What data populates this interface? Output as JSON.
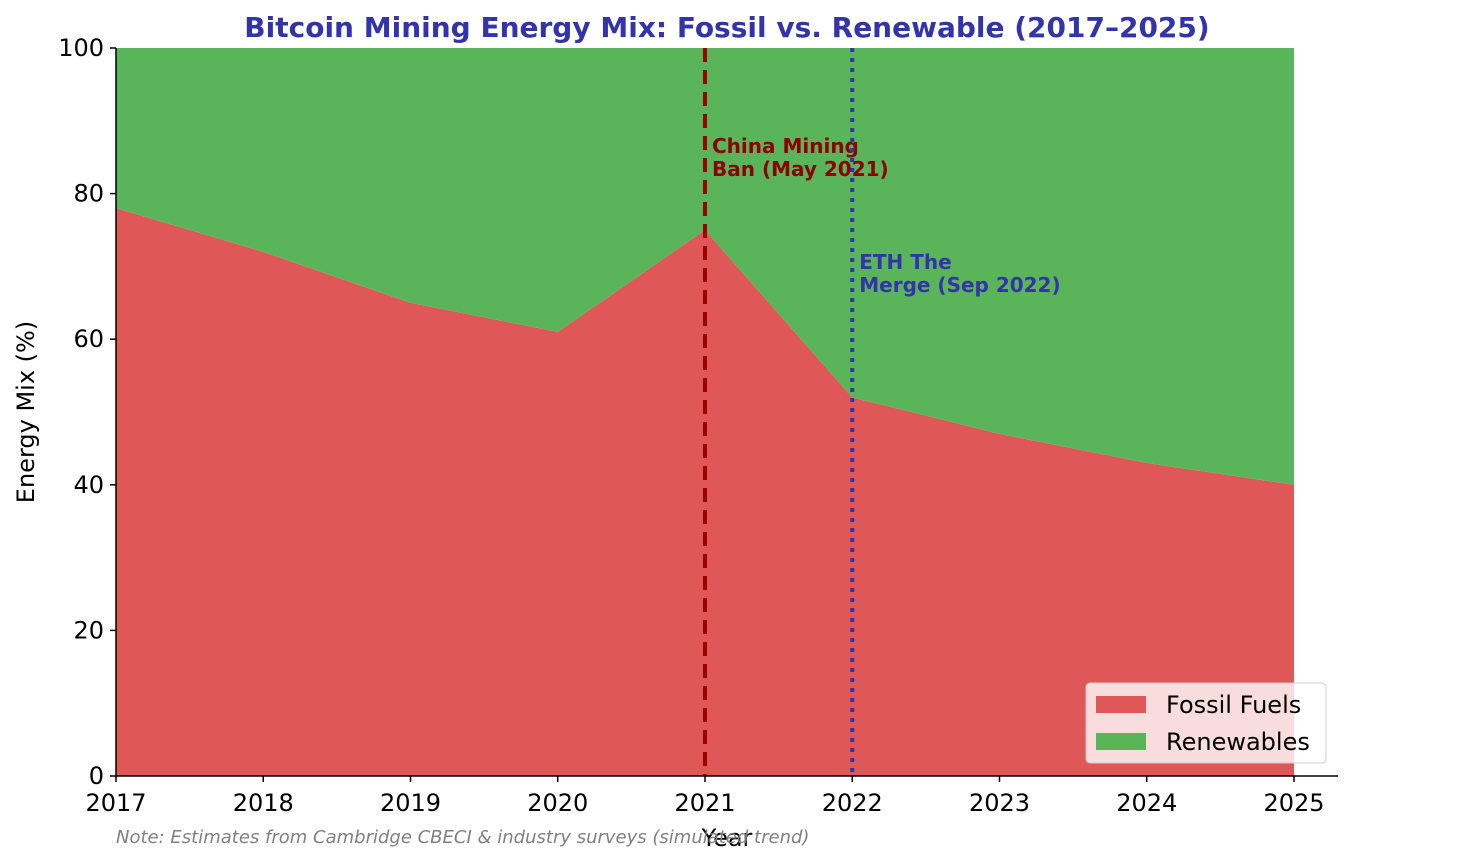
{
  "chart_data": {
    "type": "area",
    "title": "Bitcoin Mining Energy Mix: Fossil vs. Renewable (2017–2025)",
    "xlabel": "Year",
    "ylabel": "Energy Mix (%)",
    "x": [
      2017,
      2018,
      2019,
      2020,
      2021,
      2022,
      2023,
      2024,
      2025
    ],
    "xlim": [
      2017,
      2025
    ],
    "ylim": [
      0,
      100
    ],
    "yticks": [
      0,
      20,
      40,
      60,
      80,
      100
    ],
    "stacked": true,
    "grid": false,
    "legend_position": "lower-right",
    "series": [
      {
        "name": "Fossil Fuels",
        "color": "#e05757",
        "values": [
          78,
          72,
          65,
          61,
          75,
          52,
          47,
          43,
          40
        ]
      },
      {
        "name": "Renewables",
        "color": "#5ab45a",
        "values": [
          22,
          28,
          35,
          39,
          25,
          48,
          53,
          57,
          60
        ]
      }
    ],
    "annotations": [
      {
        "x": 2021,
        "style": "dashed",
        "color": "#990000",
        "text_color": "#8b0000",
        "lines": [
          "China Mining",
          "Ban (May 2021)"
        ]
      },
      {
        "x": 2022,
        "style": "dotted",
        "color": "#3333aa",
        "text_color": "#3333aa",
        "lines": [
          "ETH The",
          "Merge (Sep 2022)"
        ]
      }
    ],
    "note": "Note: Estimates from Cambridge CBECI & industry surveys (simulated trend)",
    "title_color": "#3333aa"
  }
}
